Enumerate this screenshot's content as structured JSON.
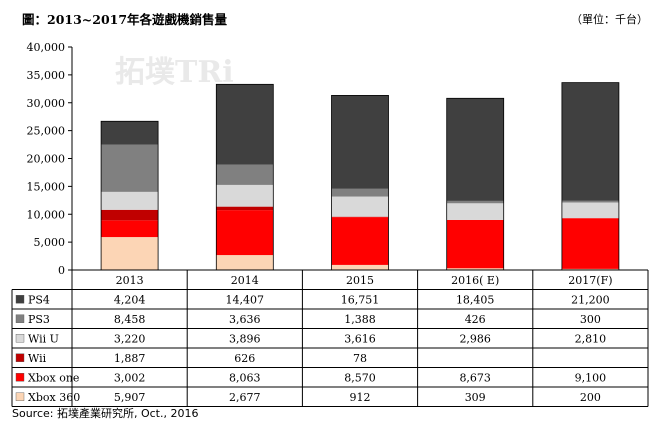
{
  "title": "圖：2013~2017年各遊戲機銷售量",
  "unit_label": "（單位：千台）",
  "watermark": "拓墣TRi",
  "source": "Source: 拓墣產業研究所, Oct., 2016",
  "chart_data": {
    "type": "bar",
    "stacked": true,
    "categories": [
      "2013",
      "2014",
      "2015",
      "2016( E)",
      "2017(F)"
    ],
    "ylim": [
      0,
      40000
    ],
    "yticks": [
      "0",
      "5,000",
      "10,000",
      "15,000",
      "20,000",
      "25,000",
      "30,000",
      "35,000",
      "40,000"
    ],
    "grid": false,
    "data_table": true,
    "series": [
      {
        "name": "Xbox 360",
        "color": "#FCD5B5",
        "values": [
          5907,
          2677,
          912,
          309,
          200
        ],
        "labels": [
          "5,907",
          "2,677",
          "912",
          "309",
          "200"
        ]
      },
      {
        "name": "Xbox one",
        "color": "#FF0000",
        "values": [
          3002,
          8063,
          8570,
          8673,
          9100
        ],
        "labels": [
          "3,002",
          "8,063",
          "8,570",
          "8,673",
          "9,100"
        ]
      },
      {
        "name": "Wii",
        "color": "#C00000",
        "values": [
          1887,
          626,
          78,
          0,
          0
        ],
        "labels": [
          "1,887",
          "626",
          "78",
          "",
          ""
        ]
      },
      {
        "name": "Wii U",
        "color": "#D9D9D9",
        "values": [
          3220,
          3896,
          3616,
          2986,
          2810
        ],
        "labels": [
          "3,220",
          "3,896",
          "3,616",
          "2,986",
          "2,810"
        ]
      },
      {
        "name": "PS3",
        "color": "#808080",
        "values": [
          8458,
          3636,
          1388,
          426,
          300
        ],
        "labels": [
          "8,458",
          "3,636",
          "1,388",
          "426",
          "300"
        ]
      },
      {
        "name": "PS4",
        "color": "#404040",
        "values": [
          4204,
          14407,
          16751,
          18405,
          21200
        ],
        "labels": [
          "4,204",
          "14,407",
          "16,751",
          "18,405",
          "21,200"
        ]
      }
    ]
  }
}
